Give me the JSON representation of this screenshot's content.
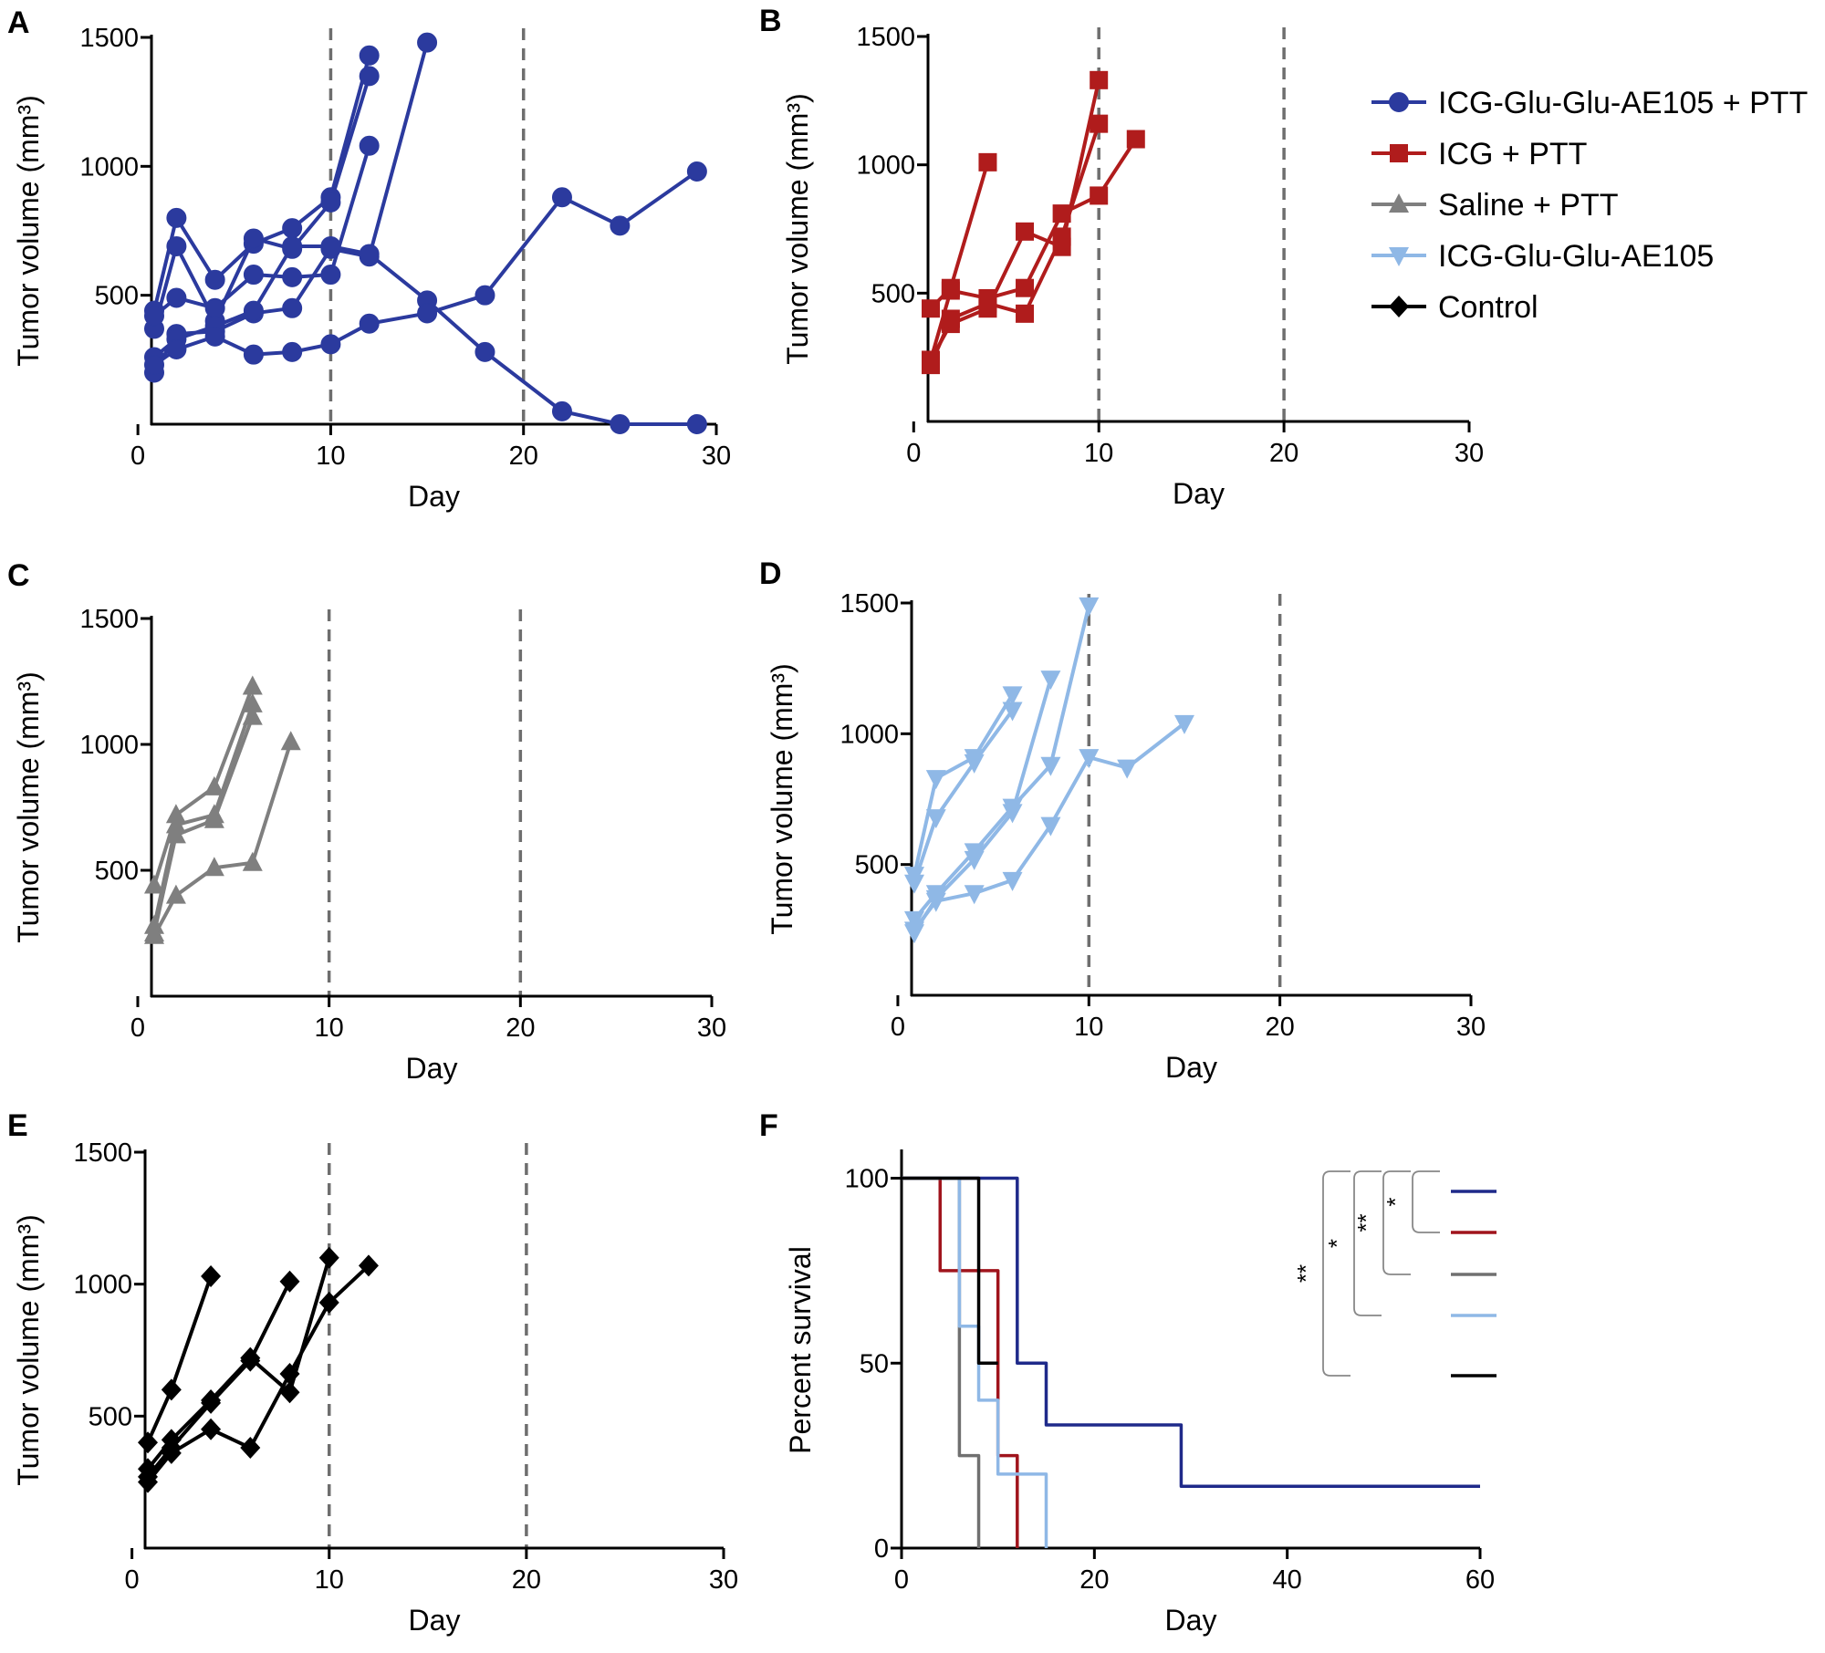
{
  "colors": {
    "icg_glu_ptt": "#2b3a9e",
    "icg_ptt": "#b01c1c",
    "saline_ptt": "#7f7f7f",
    "icg_glu": "#8fb8e6",
    "control": "#000000",
    "km_icg_glu_ptt": "#1f2a8a",
    "km_icg_ptt": "#a0141c",
    "km_saline_ptt": "#707070",
    "km_icg_glu": "#8fb8e6",
    "km_control": "#000000"
  },
  "legend": [
    {
      "label": "ICG-Glu-Glu-AE105 + PTT",
      "color": "#2b3a9e",
      "marker": "circle"
    },
    {
      "label": "ICG + PTT",
      "color": "#b01c1c",
      "marker": "square"
    },
    {
      "label": "Saline + PTT",
      "color": "#7f7f7f",
      "marker": "triangle-up"
    },
    {
      "label": "ICG-Glu-Glu-AE105",
      "color": "#8fb8e6",
      "marker": "triangle-down"
    },
    {
      "label": "Control",
      "color": "#000000",
      "marker": "diamond"
    }
  ],
  "chart_data": [
    {
      "panel": "A",
      "type": "line",
      "marker": "circle",
      "color": "#2b3a9e",
      "xlabel": "Day",
      "ylabel": "Tumor volume (mm³)",
      "xlim": [
        -1,
        30
      ],
      "ylim": [
        0,
        1500
      ],
      "xticks": [
        0,
        10,
        20,
        30
      ],
      "yticks": [
        500,
        1000,
        1500
      ],
      "ref_lines_x": [
        10,
        20
      ],
      "series": [
        {
          "x": [
            -1,
            2,
            4,
            6,
            8,
            10,
            12
          ],
          "y": [
            440,
            800,
            560,
            700,
            760,
            880,
            1430
          ]
        },
        {
          "x": [
            -1,
            2,
            4,
            6,
            8,
            10,
            12
          ],
          "y": [
            370,
            690,
            400,
            720,
            680,
            860,
            1350
          ]
        },
        {
          "x": [
            -1,
            2,
            4,
            6,
            8,
            10,
            12
          ],
          "y": [
            420,
            490,
            450,
            580,
            570,
            580,
            1080
          ]
        },
        {
          "x": [
            -1,
            2,
            4,
            6,
            8,
            10,
            12,
            15
          ],
          "y": [
            200,
            350,
            360,
            430,
            450,
            680,
            650,
            1480
          ]
        },
        {
          "x": [
            -1,
            2,
            4,
            6,
            8,
            10,
            12,
            15,
            18,
            22,
            25,
            29
          ],
          "y": [
            260,
            330,
            380,
            440,
            690,
            690,
            660,
            480,
            280,
            50,
            0,
            0
          ]
        },
        {
          "x": [
            -1,
            2,
            4,
            6,
            8,
            10,
            12,
            15,
            18,
            22,
            25,
            29
          ],
          "y": [
            230,
            290,
            340,
            270,
            280,
            310,
            390,
            430,
            500,
            880,
            770,
            980
          ]
        }
      ]
    },
    {
      "panel": "B",
      "type": "line",
      "marker": "square",
      "color": "#b01c1c",
      "xlabel": "Day",
      "ylabel": "Tumor volume (mm³)",
      "xlim": [
        -1,
        30
      ],
      "ylim": [
        0,
        1500
      ],
      "xticks": [
        0,
        10,
        20,
        30
      ],
      "yticks": [
        500,
        1000,
        1500
      ],
      "ref_lines_x": [
        10,
        20
      ],
      "series": [
        {
          "x": [
            -1,
            2,
            4
          ],
          "y": [
            440,
            520,
            1010
          ]
        },
        {
          "x": [
            -1,
            2,
            4,
            6,
            8,
            10
          ],
          "y": [
            240,
            380,
            440,
            740,
            680,
            1330
          ]
        },
        {
          "x": [
            -1,
            2,
            4,
            6,
            8,
            10
          ],
          "y": [
            220,
            400,
            460,
            420,
            720,
            1160
          ]
        },
        {
          "x": [
            -1,
            2,
            4,
            6,
            8,
            10,
            12
          ],
          "y": [
            240,
            510,
            480,
            520,
            810,
            880,
            1100
          ]
        }
      ]
    },
    {
      "panel": "C",
      "type": "line",
      "marker": "triangle-up",
      "color": "#7f7f7f",
      "xlabel": "Day",
      "ylabel": "Tumor volume (mm³)",
      "xlim": [
        -1,
        30
      ],
      "ylim": [
        0,
        1500
      ],
      "xticks": [
        0,
        10,
        20,
        30
      ],
      "yticks": [
        500,
        1000,
        1500
      ],
      "ref_lines_x": [
        10,
        20
      ],
      "series": [
        {
          "x": [
            -1,
            2,
            4,
            6
          ],
          "y": [
            440,
            720,
            830,
            1230
          ]
        },
        {
          "x": [
            -1,
            2,
            4,
            6
          ],
          "y": [
            280,
            680,
            720,
            1160
          ]
        },
        {
          "x": [
            -1,
            2,
            4,
            6
          ],
          "y": [
            250,
            640,
            700,
            1110
          ]
        },
        {
          "x": [
            -1,
            2,
            4,
            6,
            8
          ],
          "y": [
            240,
            400,
            510,
            530,
            1010
          ]
        }
      ]
    },
    {
      "panel": "D",
      "type": "line",
      "marker": "triangle-down",
      "color": "#8fb8e6",
      "xlabel": "Day",
      "ylabel": "Tumor volume (mm³)",
      "xlim": [
        -1,
        30
      ],
      "ylim": [
        0,
        1500
      ],
      "xticks": [
        0,
        10,
        20,
        30
      ],
      "yticks": [
        500,
        1000,
        1500
      ],
      "ref_lines_x": [
        10,
        20
      ],
      "series": [
        {
          "x": [
            -1,
            2,
            4,
            6
          ],
          "y": [
            460,
            830,
            910,
            1150
          ]
        },
        {
          "x": [
            -1,
            2,
            4,
            6
          ],
          "y": [
            430,
            680,
            890,
            1090
          ]
        },
        {
          "x": [
            -1,
            2,
            4,
            6,
            8,
            10
          ],
          "y": [
            290,
            390,
            550,
            720,
            880,
            1490
          ]
        },
        {
          "x": [
            -1,
            2,
            4,
            6,
            8
          ],
          "y": [
            240,
            370,
            520,
            700,
            1210
          ]
        },
        {
          "x": [
            -1,
            2,
            4,
            6,
            8,
            10,
            12,
            15
          ],
          "y": [
            250,
            360,
            390,
            440,
            650,
            910,
            870,
            1040
          ]
        }
      ]
    },
    {
      "panel": "E",
      "type": "line",
      "marker": "diamond",
      "color": "#000000",
      "xlabel": "Day",
      "ylabel": "Tumor volume (mm³)",
      "xlim": [
        -1,
        30
      ],
      "ylim": [
        0,
        1500
      ],
      "xticks": [
        0,
        10,
        20,
        30
      ],
      "yticks": [
        500,
        1000,
        1500
      ],
      "ref_lines_x": [
        10,
        20
      ],
      "series": [
        {
          "x": [
            -1,
            2,
            4
          ],
          "y": [
            400,
            600,
            1030
          ]
        },
        {
          "x": [
            -1,
            2,
            4,
            6,
            8,
            10
          ],
          "y": [
            300,
            410,
            560,
            720,
            590,
            1100
          ]
        },
        {
          "x": [
            -1,
            2,
            4,
            6,
            8
          ],
          "y": [
            270,
            380,
            550,
            710,
            1010
          ]
        },
        {
          "x": [
            -1,
            2,
            4,
            6,
            8,
            10,
            12
          ],
          "y": [
            250,
            360,
            450,
            380,
            660,
            930,
            1070
          ]
        }
      ]
    },
    {
      "panel": "F",
      "type": "line",
      "xlabel": "Day",
      "ylabel": "Percent survival",
      "xlim": [
        0,
        60
      ],
      "ylim": [
        0,
        110
      ],
      "xticks": [
        0,
        20,
        40,
        60
      ],
      "yticks": [
        0,
        50,
        100
      ],
      "series": [
        {
          "color": "#1f2a8a",
          "x": [
            0,
            12,
            12,
            15,
            15,
            29,
            29,
            60
          ],
          "y": [
            100,
            100,
            50,
            50,
            33.3,
            33.3,
            16.7,
            16.7
          ]
        },
        {
          "color": "#a0141c",
          "x": [
            0,
            4,
            4,
            10,
            10,
            12,
            12
          ],
          "y": [
            100,
            100,
            75,
            75,
            25,
            25,
            0
          ]
        },
        {
          "color": "#707070",
          "x": [
            0,
            6,
            6,
            8,
            8
          ],
          "y": [
            100,
            100,
            25,
            25,
            0
          ]
        },
        {
          "color": "#8fb8e6",
          "x": [
            0,
            6,
            6,
            8,
            8,
            10,
            10,
            15,
            15
          ],
          "y": [
            100,
            100,
            60,
            60,
            40,
            40,
            20,
            20,
            0
          ]
        },
        {
          "color": "#000000",
          "x": [
            0,
            8,
            8,
            10
          ],
          "y": [
            100,
            100,
            50,
            50
          ]
        }
      ],
      "significance": [
        {
          "from": 0,
          "to": 1,
          "label": "*"
        },
        {
          "from": 0,
          "to": 2,
          "label": "**"
        },
        {
          "from": 0,
          "to": 3,
          "label": "*"
        },
        {
          "from": 0,
          "to": 4,
          "label": "**"
        }
      ]
    }
  ]
}
